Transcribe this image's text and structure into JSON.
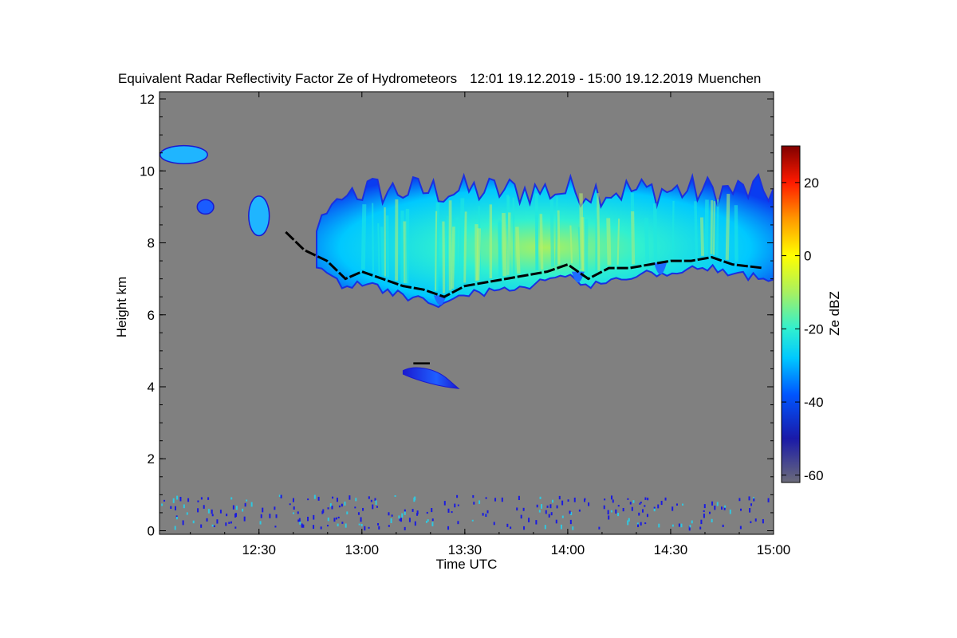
{
  "chart_data": {
    "type": "heatmap",
    "title": "Equivalent Radar Reflectivity Factor Ze of Hydrometeors",
    "period": "12:01 19.12.2019 - 15:00 19.12.2019",
    "location": "Muenchen",
    "xlabel": "Time UTC",
    "ylabel": "Height km",
    "xlim": [
      12.0167,
      15.0
    ],
    "ylim": [
      -0.1,
      12.2
    ],
    "x_ticks": [
      {
        "value": 12.5,
        "label": "12:30"
      },
      {
        "value": 13.0,
        "label": "13:00"
      },
      {
        "value": 13.5,
        "label": "13:30"
      },
      {
        "value": 14.0,
        "label": "14:00"
      },
      {
        "value": 14.5,
        "label": "14:30"
      },
      {
        "value": 15.0,
        "label": "15:00"
      }
    ],
    "y_ticks": [
      {
        "value": 0,
        "label": "0"
      },
      {
        "value": 2,
        "label": "2"
      },
      {
        "value": 4,
        "label": "4"
      },
      {
        "value": 6,
        "label": "6"
      },
      {
        "value": 8,
        "label": "8"
      },
      {
        "value": 10,
        "label": "10"
      },
      {
        "value": 12,
        "label": "12"
      }
    ],
    "background_color": "#808080",
    "colorbar": {
      "label": "Ze dBZ",
      "range": [
        -62,
        30
      ],
      "ticks": [
        {
          "value": -60,
          "label": "-60"
        },
        {
          "value": -40,
          "label": "-40"
        },
        {
          "value": -20,
          "label": "-20"
        },
        {
          "value": 0,
          "label": "0"
        },
        {
          "value": 20,
          "label": "20"
        }
      ],
      "stops": [
        {
          "value": -62,
          "color": "#6b6b7a"
        },
        {
          "value": -50,
          "color": "#1a1aa8"
        },
        {
          "value": -38,
          "color": "#0055ff"
        },
        {
          "value": -28,
          "color": "#00c8ff"
        },
        {
          "value": -20,
          "color": "#30f0d0"
        },
        {
          "value": -10,
          "color": "#a8f060"
        },
        {
          "value": 0,
          "color": "#ffff00"
        },
        {
          "value": 10,
          "color": "#ff9900"
        },
        {
          "value": 20,
          "color": "#ff1a00"
        },
        {
          "value": 30,
          "color": "#800000"
        }
      ]
    },
    "echo_regions": [
      {
        "name": "upper-ice-cloud",
        "time": [
          12.78,
          15.0
        ],
        "base_km": 6.9,
        "top_km": 9.6,
        "typical_dBZ": -25,
        "max_dBZ": -12
      },
      {
        "name": "mid-level-patch",
        "time": [
          13.2,
          13.47
        ],
        "base_km": 3.9,
        "top_km": 4.6,
        "typical_dBZ": -38
      },
      {
        "name": "high-cirrus-patch",
        "time": [
          12.02,
          12.25
        ],
        "base_km": 10.2,
        "top_km": 10.7,
        "typical_dBZ": -30
      },
      {
        "name": "small-patch",
        "time": [
          12.2,
          12.28
        ],
        "base_km": 8.8,
        "top_km": 9.2,
        "typical_dBZ": -32
      },
      {
        "name": "small-patch",
        "time": [
          12.45,
          12.55
        ],
        "base_km": 8.2,
        "top_km": 9.3,
        "typical_dBZ": -30
      },
      {
        "name": "near-surface-clutter",
        "time": [
          12.02,
          15.0
        ],
        "base_km": 0.1,
        "top_km": 1.0,
        "typical_dBZ": -45
      }
    ],
    "cloud_base_line": {
      "times": [
        12.63,
        12.72,
        12.83,
        12.92,
        13.0,
        13.1,
        13.2,
        13.3,
        13.4,
        13.5,
        13.6,
        13.7,
        13.8,
        13.9,
        14.0,
        14.1,
        14.2,
        14.3,
        14.4,
        14.5,
        14.6,
        14.7,
        14.8,
        14.95
      ],
      "heights_km": [
        8.3,
        7.8,
        7.5,
        7.0,
        7.2,
        7.0,
        6.8,
        6.7,
        6.5,
        6.8,
        6.9,
        7.0,
        7.1,
        7.2,
        7.4,
        7.0,
        7.3,
        7.3,
        7.4,
        7.5,
        7.5,
        7.6,
        7.4,
        7.3
      ]
    }
  }
}
